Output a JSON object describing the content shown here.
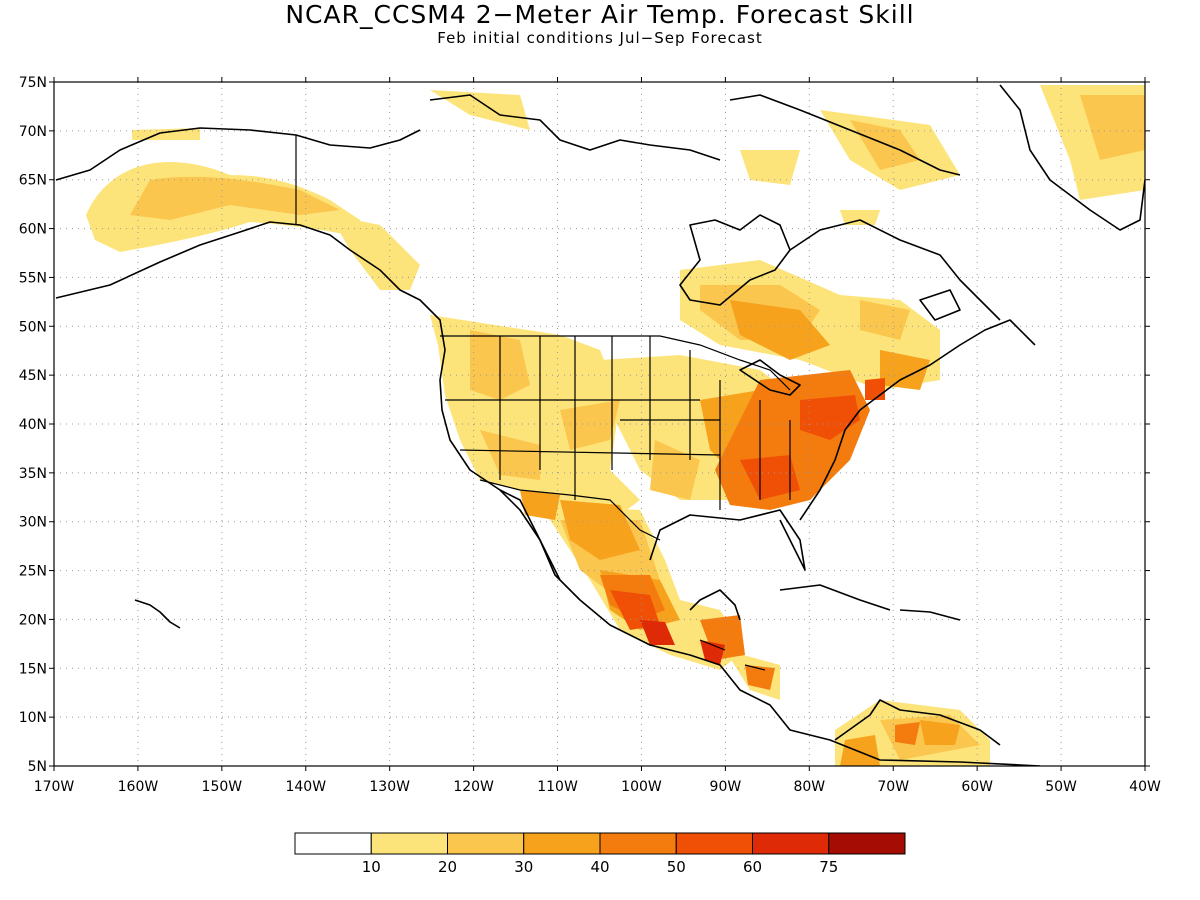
{
  "title": "NCAR_CCSM4 2−Meter Air Temp. Forecast Skill",
  "subtitle": "Feb initial conditions   Jul−Sep Forecast",
  "map": {
    "projection": "cylindrical",
    "lon_range": [
      -170,
      -40
    ],
    "lat_range": [
      5,
      75
    ],
    "gridlines": "dotted",
    "lat_labels": [
      "75N",
      "70N",
      "65N",
      "60N",
      "55N",
      "50N",
      "45N",
      "40N",
      "35N",
      "30N",
      "25N",
      "20N",
      "15N",
      "10N",
      "5N"
    ],
    "lon_labels": [
      "170W",
      "160W",
      "150W",
      "140W",
      "130W",
      "120W",
      "110W",
      "100W",
      "90W",
      "80W",
      "70W",
      "60W",
      "50W",
      "40W"
    ]
  },
  "colorbar": {
    "labels": [
      "10",
      "20",
      "30",
      "40",
      "50",
      "60",
      "75"
    ],
    "colors": [
      "#ffffff",
      "#fde47a",
      "#fbc64e",
      "#f7a21d",
      "#f47c0e",
      "#f05005",
      "#de2a07",
      "#a50d04"
    ]
  }
}
